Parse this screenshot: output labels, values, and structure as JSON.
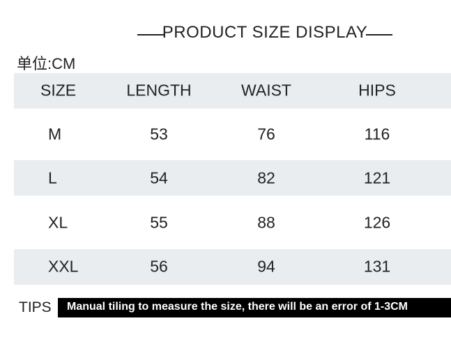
{
  "header": {
    "title": "PRODUCT SIZE DISPLAY",
    "unit": "单位:CM"
  },
  "table": {
    "columns": [
      "SIZE",
      "LENGTH",
      "WAIST",
      "HIPS"
    ],
    "rows": [
      [
        "M",
        53,
        76,
        116
      ],
      [
        "L",
        54,
        82,
        121
      ],
      [
        "XL",
        55,
        88,
        126
      ],
      [
        "XXL",
        56,
        94,
        131
      ]
    ]
  },
  "tips": {
    "label": "TIPS",
    "text": "Manual tiling to measure the size, there will be an error of 1-3CM"
  }
}
